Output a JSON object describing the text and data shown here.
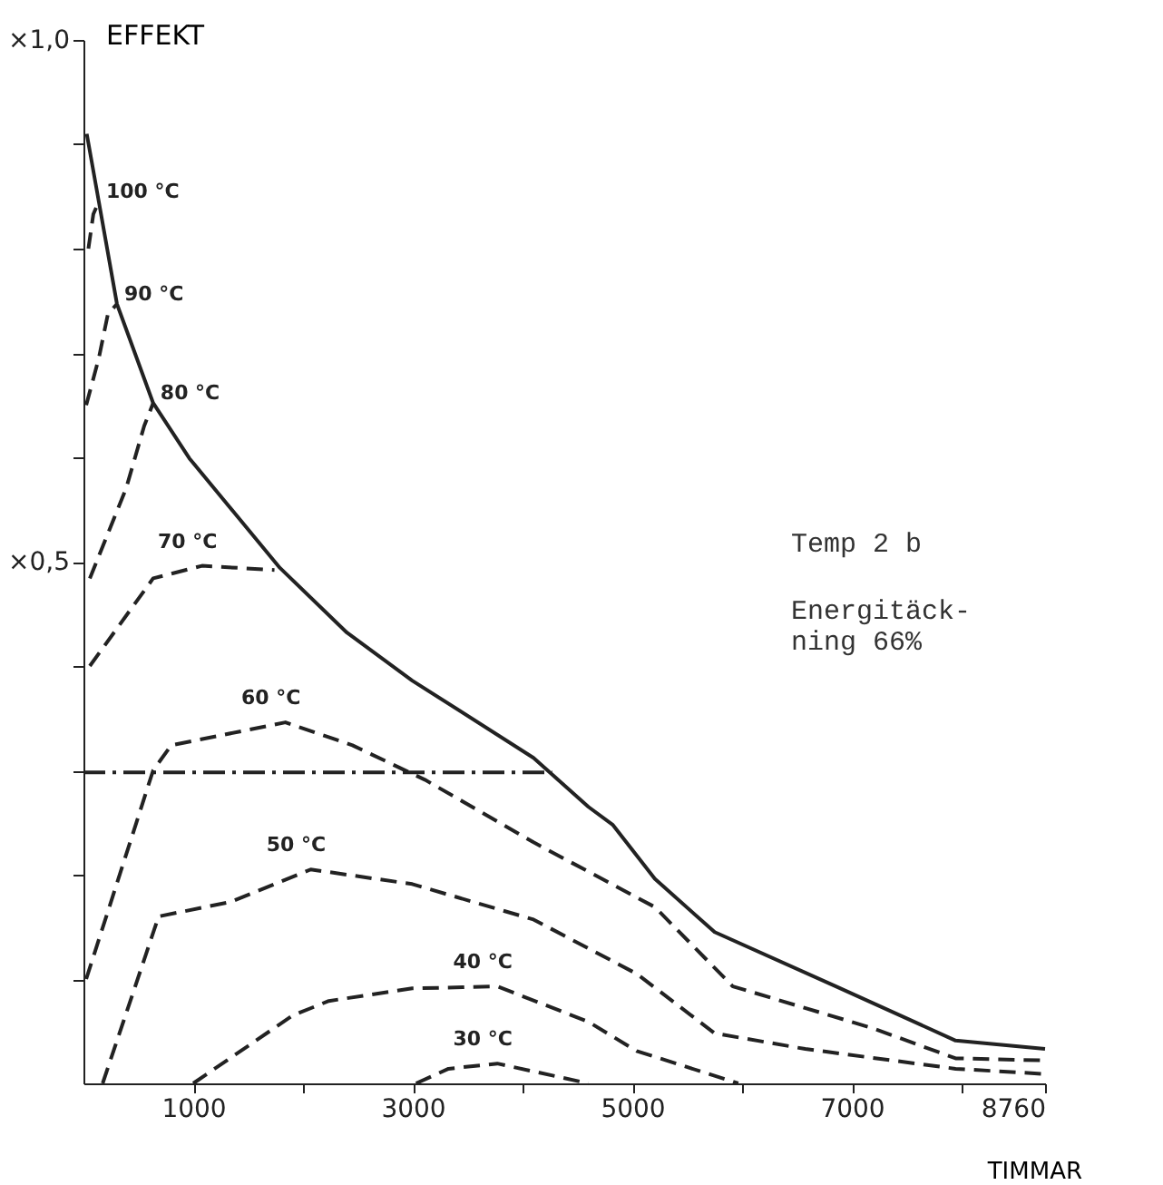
{
  "chart_data": {
    "type": "line",
    "ylabel": "EFFEKT",
    "xlabel": "TIMMAR",
    "xlim": [
      0,
      8760
    ],
    "ylim": [
      0,
      1
    ],
    "xticks": [
      1000,
      {
        "value": 2000,
        "label": null
      },
      3000,
      {
        "value": 4000,
        "label": null
      },
      5000,
      {
        "value": 6000,
        "label": null
      },
      7000,
      {
        "value": 8000,
        "label": null
      },
      8760
    ],
    "yticks": [
      {
        "value": 0.1,
        "label": null
      },
      {
        "value": 0.2,
        "label": null
      },
      {
        "value": 0.3,
        "label": null
      },
      {
        "value": 0.4,
        "label": null
      },
      {
        "value": 0.5,
        "label": "×0,5"
      },
      {
        "value": 0.6,
        "label": null
      },
      {
        "value": 0.7,
        "label": null
      },
      {
        "value": 0.8,
        "label": null
      },
      {
        "value": 0.9,
        "label": null
      },
      {
        "value": 1.0,
        "label": "×1,0"
      }
    ],
    "grid": false,
    "marker": "none",
    "series": [
      {
        "type": "line",
        "color": "#222222",
        "line_style": "solid",
        "x": [
          30,
          140,
          305,
          635,
          965,
          1790,
          2400,
          2995,
          4100,
          4600,
          4820,
          5205,
          5750,
          6855,
          7945,
          8760
        ],
        "values": [
          0.91,
          0.845,
          0.747,
          0.652,
          0.599,
          0.494,
          0.432,
          0.386,
          0.312,
          0.265,
          0.248,
          0.196,
          0.145,
          0.093,
          0.041,
          0.033
        ]
      },
      {
        "type": "line",
        "name": "100 °C",
        "color": "#222222",
        "line_style": "dashed",
        "x": [
          45,
          90,
          140
        ],
        "values": [
          0.8,
          0.833,
          0.845
        ]
      },
      {
        "type": "line",
        "name": "90 °C",
        "color": "#222222",
        "line_style": "dashed",
        "x": [
          25,
          140,
          222,
          305
        ],
        "values": [
          0.65,
          0.695,
          0.737,
          0.747
        ]
      },
      {
        "type": "line",
        "name": "80 °C",
        "color": "#222222",
        "line_style": "dashed",
        "x": [
          58,
          388,
          553,
          635
        ],
        "values": [
          0.484,
          0.57,
          0.63,
          0.652
        ]
      },
      {
        "type": "line",
        "name": "70 °C",
        "color": "#222222",
        "line_style": "dashed",
        "x": [
          58,
          635,
          1080,
          1740
        ],
        "values": [
          0.4,
          0.484,
          0.496,
          0.492
        ]
      },
      {
        "type": "line",
        "name": "60 °C",
        "color": "#222222",
        "line_style": "dashed",
        "x": [
          25,
          635,
          800,
          1840,
          2450,
          3110,
          4100,
          5205,
          5915,
          7185,
          7945,
          8760
        ],
        "values": [
          0.1,
          0.3,
          0.324,
          0.346,
          0.324,
          0.291,
          0.231,
          0.169,
          0.093,
          0.053,
          0.024,
          0.022
        ]
      },
      {
        "type": "line",
        "name": "50 °C",
        "color": "#222222",
        "line_style": "dashed",
        "x": [
          175,
          685,
          1345,
          2070,
          2995,
          4100,
          5040,
          5750,
          6575,
          7945,
          8760
        ],
        "values": [
          0.0,
          0.16,
          0.174,
          0.205,
          0.191,
          0.157,
          0.105,
          0.048,
          0.033,
          0.014,
          0.009
        ]
      },
      {
        "type": "line",
        "name": "40 °C",
        "color": "#222222",
        "line_style": "dashed",
        "x": [
          1000,
          1905,
          2235,
          2995,
          3770,
          4600,
          5040,
          5965
        ],
        "values": [
          0.0,
          0.065,
          0.079,
          0.091,
          0.093,
          0.059,
          0.031,
          0.0
        ]
      },
      {
        "type": "line",
        "name": "30 °C",
        "color": "#222222",
        "line_style": "dashed",
        "x": [
          3030,
          3325,
          3770,
          4600
        ],
        "values": [
          0.0,
          0.014,
          0.019,
          0.0
        ]
      },
      {
        "type": "line",
        "color": "#222222",
        "line_style": "dashdot",
        "x": [
          0,
          4270
        ],
        "values": [
          0.298,
          0.298
        ]
      }
    ],
    "annotations": [
      "Temp 2 b",
      "Energitäck-\nning 66%"
    ]
  }
}
